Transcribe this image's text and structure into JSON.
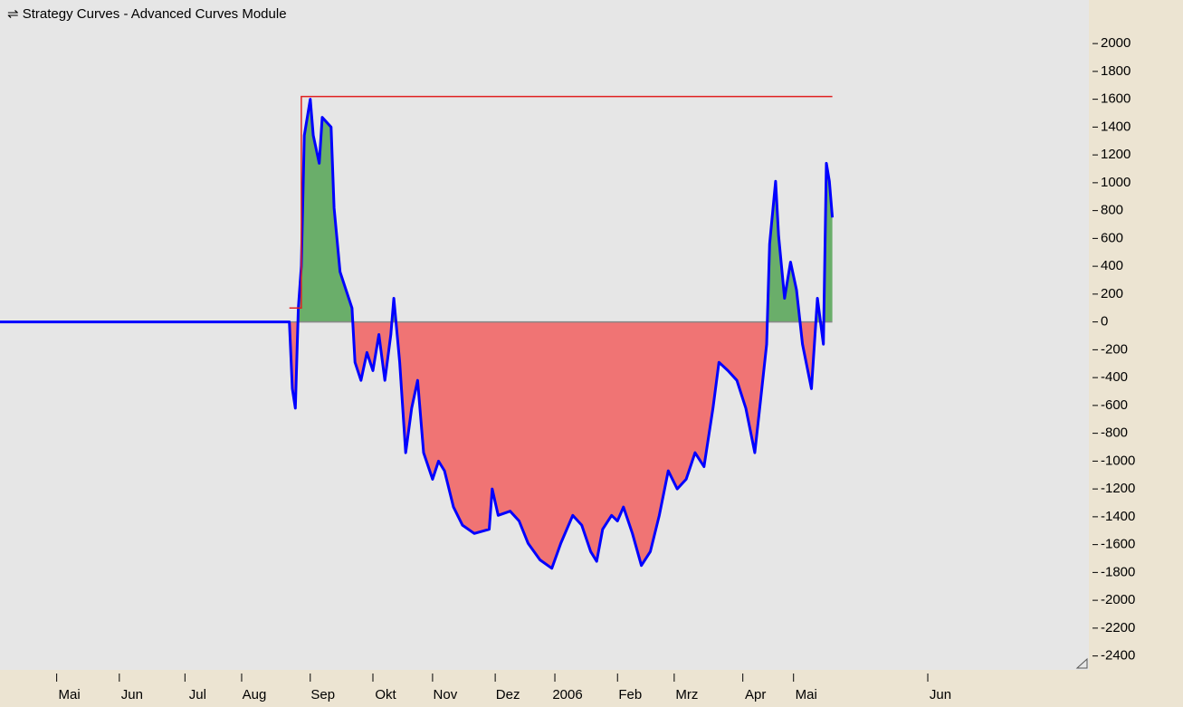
{
  "chart_data": {
    "type": "equity",
    "title": "⇌ Strategy Curves - Advanced Curves Module",
    "xlim": [
      0,
      365
    ],
    "ylim": [
      -2500,
      2300
    ],
    "xticks": [
      {
        "value": 19,
        "label": "Mai"
      },
      {
        "value": 40,
        "label": "Jun"
      },
      {
        "value": 62,
        "label": "Jul"
      },
      {
        "value": 81,
        "label": "Aug"
      },
      {
        "value": 104,
        "label": "Sep"
      },
      {
        "value": 125,
        "label": "Okt"
      },
      {
        "value": 145,
        "label": "Nov"
      },
      {
        "value": 166,
        "label": "Dez"
      },
      {
        "value": 186,
        "label": "2006"
      },
      {
        "value": 207,
        "label": "Feb"
      },
      {
        "value": 226,
        "label": "Mrz"
      },
      {
        "value": 249,
        "label": "Apr"
      },
      {
        "value": 266,
        "label": "Mai"
      },
      {
        "value": 311,
        "label": "Jun"
      }
    ],
    "yticks": [
      2000,
      1800,
      1600,
      1400,
      1200,
      1000,
      800,
      600,
      400,
      200,
      0,
      -200,
      -400,
      -600,
      -800,
      -1000,
      -1200,
      -1400,
      -1600,
      -1800,
      -2000,
      -2200,
      -2400
    ],
    "series": [
      {
        "color": "#0000ff",
        "positive_fill": "#6aae6a",
        "negative_fill": "#f07474",
        "x": [
          0,
          97,
          98,
          99,
          100,
          101,
          102,
          104,
          105,
          107,
          108,
          111,
          112,
          114,
          116,
          118,
          119,
          121,
          123,
          125,
          127,
          129,
          131,
          132,
          134,
          136,
          138,
          140,
          142,
          145,
          147,
          149,
          152,
          155,
          159,
          164,
          165,
          167,
          171,
          174,
          177,
          181,
          185,
          188,
          192,
          195,
          198,
          200,
          202,
          205,
          207,
          209,
          212,
          215,
          218,
          221,
          224,
          227,
          230,
          233,
          236,
          239,
          241,
          244,
          247,
          250,
          253,
          255,
          257,
          258,
          260,
          261,
          263,
          265,
          267,
          269,
          272,
          274,
          276,
          277,
          278,
          279
        ],
        "values": [
          0,
          0,
          -480,
          -620,
          100,
          400,
          1340,
          1600,
          1340,
          1140,
          1470,
          1400,
          820,
          360,
          230,
          100,
          -290,
          -420,
          -220,
          -350,
          -90,
          -420,
          -90,
          170,
          -290,
          -940,
          -620,
          -420,
          -940,
          -1130,
          -1000,
          -1070,
          -1330,
          -1460,
          -1520,
          -1490,
          -1200,
          -1390,
          -1360,
          -1430,
          -1590,
          -1710,
          -1770,
          -1590,
          -1390,
          -1460,
          -1650,
          -1720,
          -1490,
          -1390,
          -1430,
          -1330,
          -1520,
          -1750,
          -1650,
          -1390,
          -1070,
          -1200,
          -1130,
          -940,
          -1040,
          -620,
          -290,
          -350,
          -420,
          -620,
          -940,
          -550,
          -160,
          560,
          1010,
          620,
          170,
          430,
          230,
          -160,
          -480,
          170,
          -160,
          1140,
          1010,
          750
        ]
      },
      {
        "color": "#e02020",
        "x": [
          97,
          101,
          101,
          279
        ],
        "values": [
          100,
          100,
          1620,
          1620
        ]
      }
    ]
  }
}
